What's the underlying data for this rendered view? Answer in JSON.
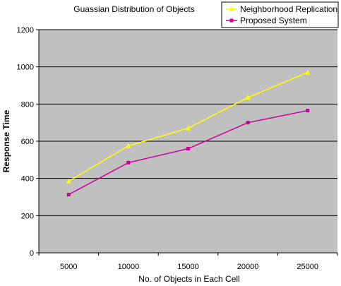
{
  "chart_data": {
    "type": "line",
    "title": "Guassian Distribution of Objects",
    "xlabel": "No. of Objects in Each Cell",
    "ylabel": "Response Time",
    "categories": [
      "5000",
      "10000",
      "15000",
      "20000",
      "25000"
    ],
    "ylim": [
      0,
      1200
    ],
    "yticks": [
      0,
      200,
      400,
      600,
      800,
      1000,
      1200
    ],
    "grid": true,
    "legend_position": "top-right",
    "plot_background": "#c0c0c0",
    "series": [
      {
        "name": "Neighborhood Replication",
        "values": [
          385,
          575,
          670,
          835,
          970
        ],
        "color": "#ffff00",
        "marker": "triangle"
      },
      {
        "name": "Proposed System",
        "values": [
          313,
          485,
          560,
          700,
          765
        ],
        "color": "#cc0099",
        "marker": "square"
      }
    ]
  }
}
